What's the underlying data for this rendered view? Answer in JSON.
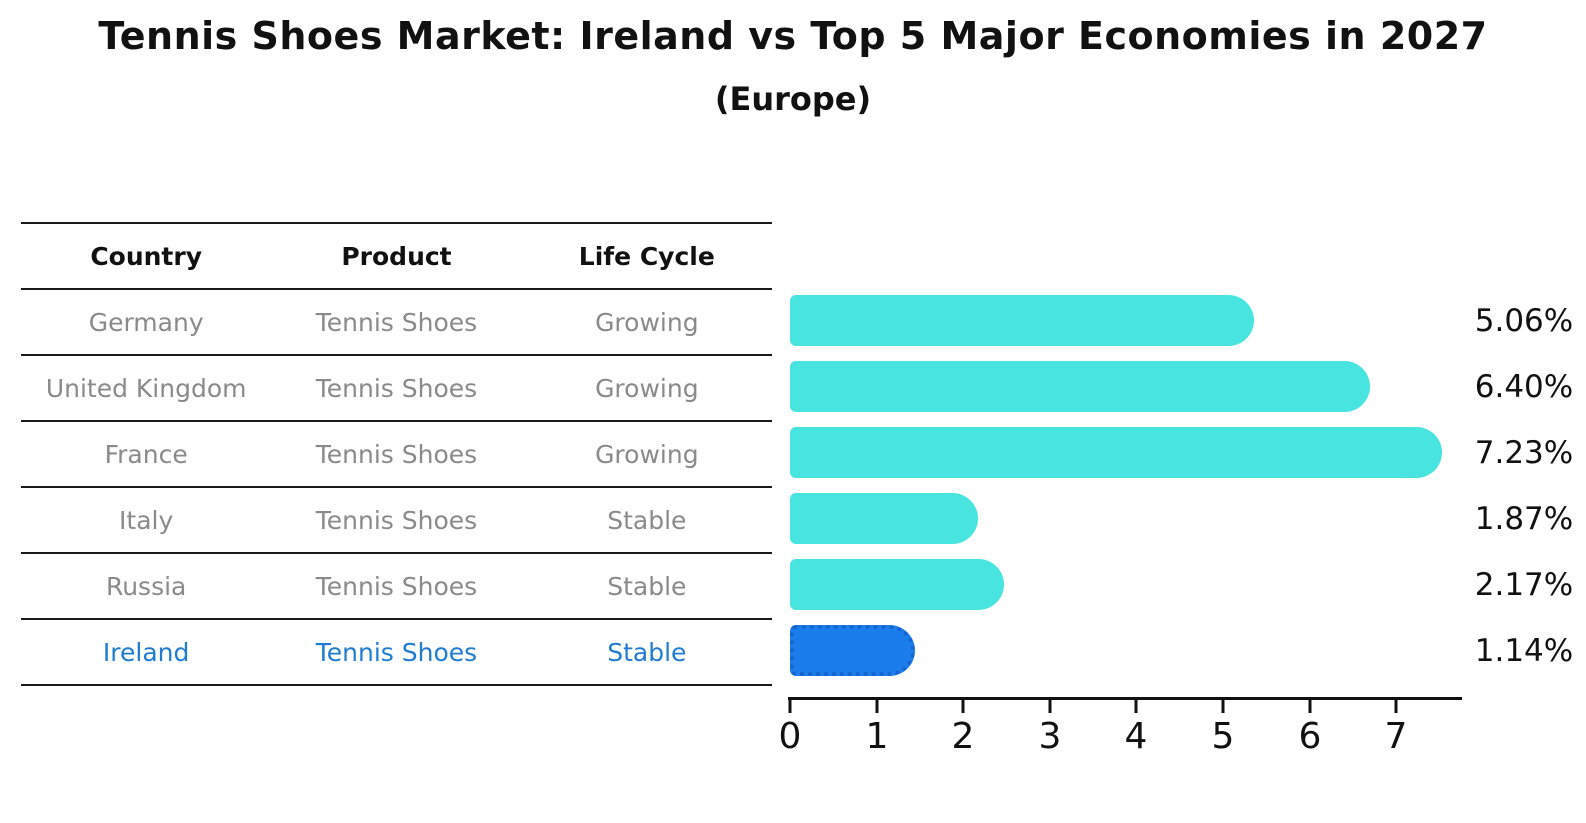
{
  "title": "Tennis Shoes Market: Ireland vs Top 5 Major Economies in 2027",
  "subtitle": "(Europe)",
  "table": {
    "headers": [
      "Country",
      "Product",
      "Life Cycle"
    ],
    "rows": [
      {
        "country": "Germany",
        "product": "Tennis Shoes",
        "life_cycle": "Growing",
        "highlight": false
      },
      {
        "country": "United Kingdom",
        "product": "Tennis Shoes",
        "life_cycle": "Growing",
        "highlight": false
      },
      {
        "country": "France",
        "product": "Tennis Shoes",
        "life_cycle": "Growing",
        "highlight": false
      },
      {
        "country": "Italy",
        "product": "Tennis Shoes",
        "life_cycle": "Stable",
        "highlight": false
      },
      {
        "country": "Russia",
        "product": "Tennis Shoes",
        "life_cycle": "Stable",
        "highlight": false
      },
      {
        "country": "Ireland",
        "product": "Tennis Shoes",
        "life_cycle": "Stable",
        "highlight": true
      }
    ]
  },
  "chart_data": {
    "type": "bar",
    "orientation": "horizontal",
    "title": "Tennis Shoes Market: Ireland vs Top 5 Major Economies in 2027",
    "subtitle": "(Europe)",
    "categories": [
      "Germany",
      "United Kingdom",
      "France",
      "Italy",
      "Russia",
      "Ireland"
    ],
    "values": [
      5.06,
      6.4,
      7.23,
      1.87,
      2.17,
      1.14
    ],
    "value_labels": [
      "5.06%",
      "6.40%",
      "7.23%",
      "1.87%",
      "2.17%",
      "1.14%"
    ],
    "xticks": [
      0,
      1,
      2,
      3,
      4,
      5,
      6,
      7
    ],
    "xlim": [
      0,
      7.76
    ],
    "grid": false,
    "legend": false,
    "highlight_index": 5,
    "bar_color": "#47E4E0",
    "highlight_color": "#1B7CEB",
    "highlight_border_color": "#1565D0",
    "highlight_text_color": "#1E7CD2"
  }
}
